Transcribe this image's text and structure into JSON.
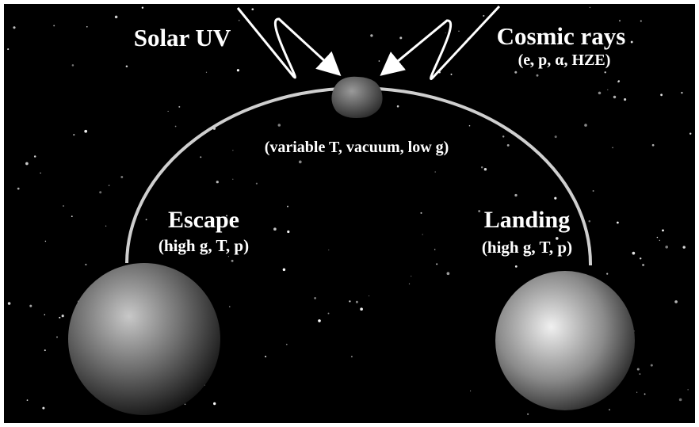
{
  "labels": {
    "solar": "Solar UV",
    "cosmic": "Cosmic rays",
    "cosmic_types": "(e, p, α, HZE)",
    "transit": "(variable T, vacuum, low g)",
    "escape": "Escape",
    "escape_conditions": "(high g, T, p)",
    "landing": "Landing",
    "landing_conditions": "(high g, T, p)"
  }
}
